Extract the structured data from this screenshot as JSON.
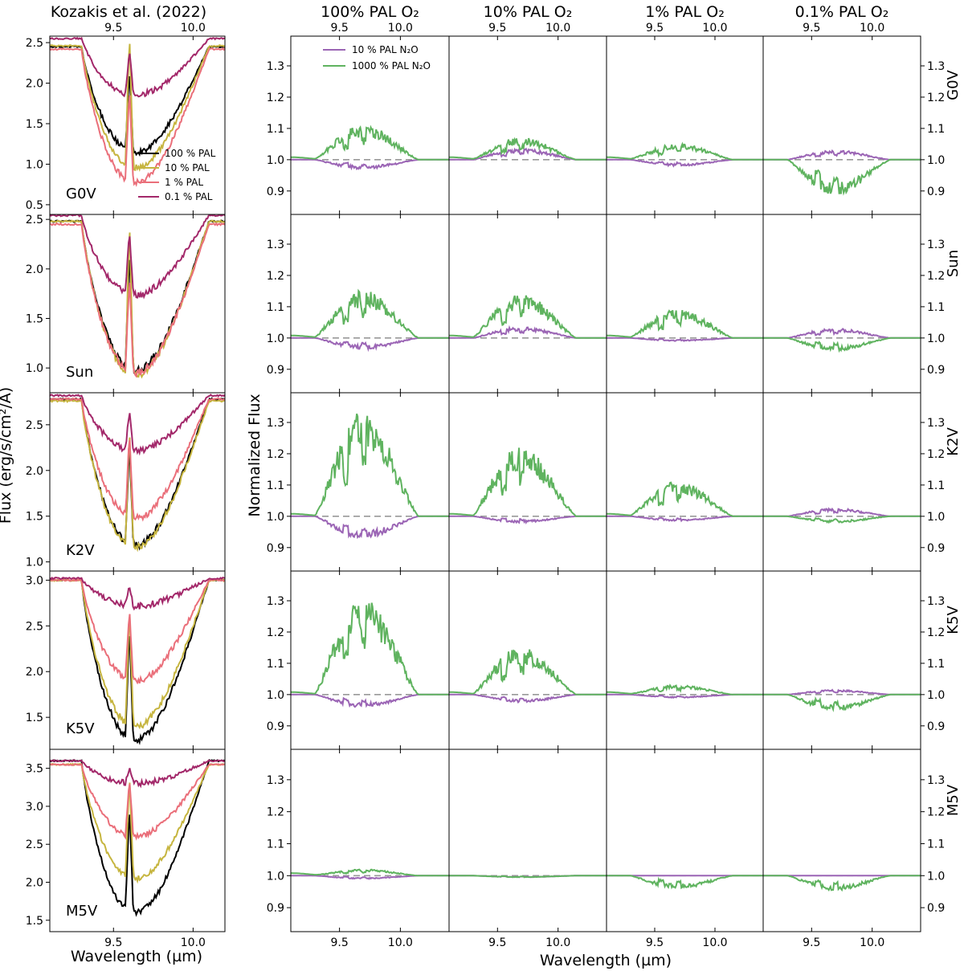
{
  "figure": {
    "left_title": "Kozakis et al. (2022)",
    "left_xlabel": "Wavelength (µm)",
    "left_ylabel": "Flux (erg/s/cm²/Å)",
    "right_xlabel": "Wavelength (µm)",
    "right_ylabel": "Normalized Flux",
    "colors": {
      "pal100": "#000000",
      "pal10": "#c6b53f",
      "pal1": "#ea6f7a",
      "pal01": "#a3286a",
      "n2o_10": "#9b65b5",
      "n2o_1000": "#5fb35f",
      "reference_line": "#999999"
    }
  },
  "chart_data": [
    {
      "type": "line",
      "panel": "left",
      "title": "Kozakis et al. (2022)",
      "xlabel": "Wavelength (µm)",
      "ylabel": "Flux (erg/s/cm²/Å)",
      "xlim": [
        9.1,
        10.2
      ],
      "xticks": [
        "9.5",
        "10.0"
      ],
      "legend": {
        "placement": "inside G0V panel, lower-right",
        "entries": [
          "100 % PAL",
          "10 % PAL",
          "1 % PAL",
          "0.1 % PAL"
        ]
      },
      "rows": [
        {
          "label": "G0V",
          "ylim": [
            0.38,
            2.58
          ],
          "yticks": [
            "0.5",
            "1.0",
            "1.5",
            "2.0",
            "2.5"
          ],
          "params": {
            "cont": [
              2.45,
              2.46,
              2.42,
              2.55
            ],
            "depth": [
              1.3,
              1.5,
              1.65,
              0.7
            ],
            "gap": [
              0.08,
              0.25,
              0.05,
              0.1
            ]
          }
        },
        {
          "label": "Sun",
          "ylim": [
            0.75,
            2.55
          ],
          "yticks": [
            "1.0",
            "1.5",
            "2.0",
            "2.5"
          ],
          "params": {
            "cont": [
              2.48,
              2.48,
              2.45,
              2.54
            ],
            "depth": [
              1.5,
              1.55,
              1.5,
              0.8
            ],
            "gap": [
              0.1,
              0.2,
              0.02,
              0.1
            ]
          }
        },
        {
          "label": "K2V",
          "ylim": [
            0.9,
            2.85
          ],
          "yticks": [
            "1.0",
            "1.5",
            "2.0",
            "2.5"
          ],
          "params": {
            "cont": [
              2.78,
              2.76,
              2.78,
              2.82
            ],
            "depth": [
              1.6,
              1.6,
              1.3,
              0.6
            ],
            "gap": [
              0.05,
              0.1,
              0.05,
              0.05
            ]
          }
        },
        {
          "label": "K5V",
          "ylim": [
            1.15,
            3.1
          ],
          "yticks": [
            "1.5",
            "2.0",
            "2.5",
            "3.0"
          ],
          "params": {
            "cont": [
              3.0,
              3.0,
              3.0,
              3.02
            ],
            "depth": [
              1.75,
              1.6,
              1.1,
              0.3
            ],
            "gap": [
              0.05,
              0.1,
              0.05,
              0.05
            ]
          }
        },
        {
          "label": "M5V",
          "ylim": [
            1.35,
            3.75
          ],
          "yticks": [
            "1.5",
            "2.0",
            "2.5",
            "3.0",
            "3.5"
          ],
          "params": {
            "cont": [
              3.6,
              3.55,
              3.55,
              3.6
            ],
            "depth": [
              2.0,
              1.5,
              0.95,
              0.3
            ],
            "gap": [
              0.05,
              0.15,
              0.1,
              0.05
            ]
          }
        }
      ]
    },
    {
      "type": "line",
      "panel": "right",
      "xlabel": "Wavelength (µm)",
      "ylabel": "Normalized Flux",
      "xlim": [
        9.1,
        10.4
      ],
      "ylim": [
        0.825,
        1.395
      ],
      "xticks": [
        "9.5",
        "10.0"
      ],
      "yticks": [
        "0.9",
        "1.0",
        "1.1",
        "1.2",
        "1.3"
      ],
      "reference_line": 1.0,
      "legend": {
        "placement": "upper-left of first panel",
        "entries": [
          "10 % PAL N₂O",
          "1000 % PAL N₂O"
        ]
      },
      "columns": [
        "100% PAL O₂",
        "10% PAL O₂",
        "1% PAL O₂",
        "0.1% PAL O₂"
      ],
      "rows": [
        "G0V",
        "Sun",
        "K2V",
        "K5V",
        "M5V"
      ],
      "amplitudes_green": [
        [
          0.11,
          0.07,
          0.05,
          -0.11
        ],
        [
          0.15,
          0.14,
          0.09,
          -0.04
        ],
        [
          0.33,
          0.22,
          0.11,
          -0.02
        ],
        [
          0.31,
          0.15,
          0.03,
          -0.05
        ],
        [
          0.02,
          -0.005,
          -0.04,
          -0.045
        ]
      ],
      "amplitudes_purple": [
        [
          -0.03,
          0.035,
          -0.02,
          0.03
        ],
        [
          -0.035,
          0.035,
          -0.01,
          0.03
        ],
        [
          -0.07,
          -0.02,
          -0.015,
          0.025
        ],
        [
          -0.04,
          -0.025,
          -0.01,
          0.015
        ],
        [
          -0.01,
          -0.005,
          0.0,
          0.0
        ]
      ]
    }
  ]
}
